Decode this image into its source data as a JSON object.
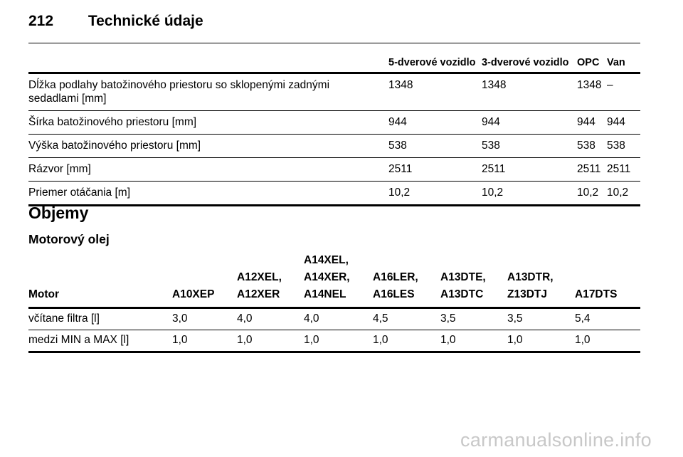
{
  "header": {
    "page_number": "212",
    "title": "Technické údaje"
  },
  "dimensions_table": {
    "columns": [
      "",
      "5-dverové vozidlo",
      "3-dverové vozidlo",
      "OPC",
      "Van"
    ],
    "rows": [
      {
        "label": "Dĺžka podlahy batožinového priestoru so sklopenými zadnými sedadlami [mm]",
        "values": [
          "1348",
          "1348",
          "1348",
          "–"
        ]
      },
      {
        "label": "Šírka batožinového priestoru [mm]",
        "values": [
          "944",
          "944",
          "944",
          "944"
        ]
      },
      {
        "label": "Výška batožinového priestoru [mm]",
        "values": [
          "538",
          "538",
          "538",
          "538"
        ]
      },
      {
        "label": "Rázvor [mm]",
        "values": [
          "2511",
          "2511",
          "2511",
          "2511"
        ]
      },
      {
        "label": "Priemer otáčania [m]",
        "values": [
          "10,2",
          "10,2",
          "10,2",
          "10,2"
        ]
      }
    ]
  },
  "section_title": "Objemy",
  "subsection_title": "Motorový olej",
  "oil_table": {
    "columns": [
      [
        "Motor"
      ],
      [
        "A10XEP"
      ],
      [
        "A12XEL,",
        "A12XER"
      ],
      [
        "A14XEL,",
        "A14XER,",
        "A14NEL"
      ],
      [
        "A16LER,",
        "A16LES"
      ],
      [
        "A13DTE,",
        "A13DTC"
      ],
      [
        "A13DTR,",
        "Z13DTJ"
      ],
      [
        "A17DTS"
      ]
    ],
    "rows": [
      {
        "label": "včítane filtra [l]",
        "values": [
          "3,0",
          "4,0",
          "4,0",
          "4,5",
          "3,5",
          "3,5",
          "5,4"
        ]
      },
      {
        "label": "medzi MIN a MAX [l]",
        "values": [
          "1,0",
          "1,0",
          "1,0",
          "1,0",
          "1,0",
          "1,0",
          "1,0"
        ]
      }
    ]
  },
  "watermark": "carmanualsonline.info"
}
